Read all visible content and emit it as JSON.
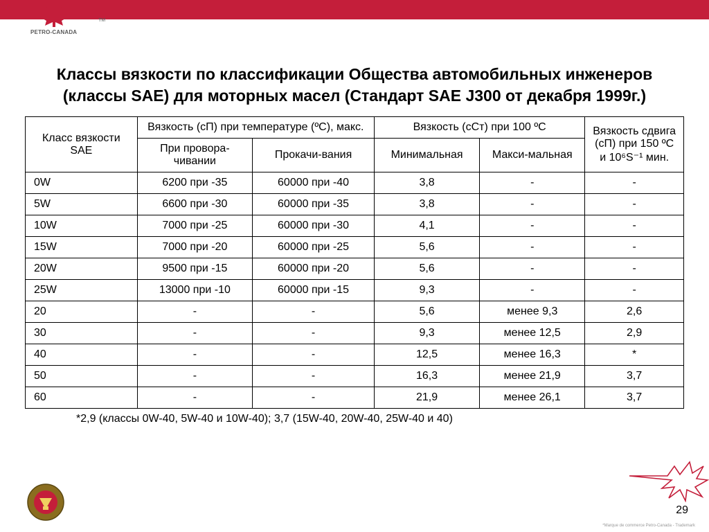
{
  "brand": {
    "name": "PETRO-CANADA",
    "leaf_color": "#c41e3a",
    "tm": "TM"
  },
  "colors": {
    "header_bar": "#c41e3a",
    "border": "#000000",
    "text": "#000000",
    "background": "#ffffff"
  },
  "title": "Классы вязкости по классификации Общества автомобильных инженеров (классы SAE) для моторных масел (Стандарт SAE J300 от декабря 1999г.)",
  "table": {
    "type": "table",
    "font_size": 16,
    "border_color": "#000000",
    "columns": [
      "c0",
      "c1",
      "c2",
      "c3",
      "c4",
      "c5"
    ],
    "headers": {
      "sae": "Класс вязкости SAE",
      "visc_temp": "Вязкость (сП) при температуре (ºС), макс.",
      "crank": "При провора-чивании",
      "pump": "Прокачи-вания",
      "visc_100": "Вязкость (сСт) при 100 ºС",
      "min": "Минимальная",
      "max": "Макси-мальная",
      "shear": "Вязкость сдвига (сП) при 150 ºС и 10⁶S⁻¹ мин."
    },
    "rows": [
      {
        "sae": "0W",
        "crank": "6200 при -35",
        "pump": "60000 при -40",
        "min": "3,8",
        "max": "-",
        "shear": "-"
      },
      {
        "sae": "5W",
        "crank": "6600 при -30",
        "pump": "60000 при -35",
        "min": "3,8",
        "max": "-",
        "shear": "-"
      },
      {
        "sae": "10W",
        "crank": "7000 при -25",
        "pump": "60000 при -30",
        "min": "4,1",
        "max": "-",
        "shear": "-"
      },
      {
        "sae": "15W",
        "crank": "7000 при -20",
        "pump": "60000 при -25",
        "min": "5,6",
        "max": "-",
        "shear": "-"
      },
      {
        "sae": "20W",
        "crank": "9500 при -15",
        "pump": "60000 при -20",
        "min": "5,6",
        "max": "-",
        "shear": "-"
      },
      {
        "sae": "25W",
        "crank": "13000 при -10",
        "pump": "60000 при -15",
        "min": "9,3",
        "max": "-",
        "shear": "-"
      },
      {
        "sae": "20",
        "crank": "-",
        "pump": "-",
        "min": "5,6",
        "max": "менее 9,3",
        "shear": "2,6"
      },
      {
        "sae": "30",
        "crank": "-",
        "pump": "-",
        "min": "9,3",
        "max": "менее 12,5",
        "shear": "2,9"
      },
      {
        "sae": "40",
        "crank": "-",
        "pump": "-",
        "min": "12,5",
        "max": "менее 16,3",
        "shear": "*"
      },
      {
        "sae": "50",
        "crank": "-",
        "pump": "-",
        "min": "16,3",
        "max": "менее 21,9",
        "shear": "3,7"
      },
      {
        "sae": "60",
        "crank": "-",
        "pump": "-",
        "min": "21,9",
        "max": "менее 26,1",
        "shear": "3,7"
      }
    ]
  },
  "footnote": "*2,9 (классы 0W-40, 5W-40 и 10W-40); 3,7 (15W-40, 20W-40, 25W-40 и 40)",
  "page_number": "29",
  "trademark_note": "*Marque de commerce Petro-Canada - Trademark"
}
